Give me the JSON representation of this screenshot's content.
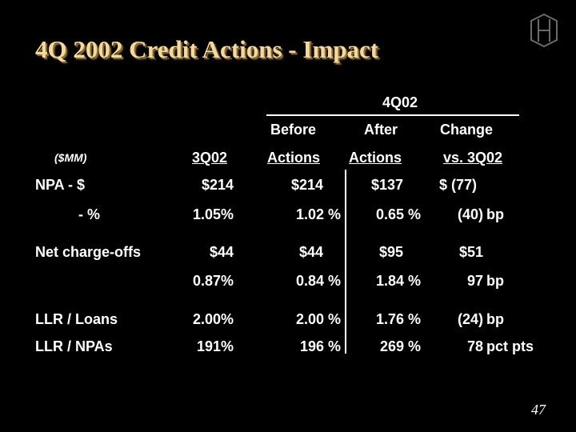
{
  "title": "4Q 2002 Credit Actions - Impact",
  "page_number": "47",
  "logo": "hsbc-style-monogram-icon",
  "header": {
    "period": "4Q02",
    "before_1": "Before",
    "before_2": "Actions",
    "after_1": "After",
    "after_2": "Actions",
    "change_1": "Change",
    "change_2": "vs. 3Q02",
    "units": "($MM)",
    "prev": "3Q02"
  },
  "rows": [
    {
      "label": "NPA - $",
      "q3": "$214",
      "before": "$214",
      "after": "$137",
      "chg": "$ (77)",
      "unit": ""
    },
    {
      "label": "- %",
      "q3": "1.05%",
      "before": "1.02 %",
      "after": "0.65 %",
      "chg": "(40)",
      "unit": "bp"
    },
    {
      "label": "Net charge-offs",
      "q3": "$44",
      "before": "$44",
      "after": "$95",
      "chg": "$51",
      "unit": ""
    },
    {
      "label": "",
      "q3": "0.87%",
      "before": "0.84 %",
      "after": "1.84 %",
      "chg": "97",
      "unit": "bp"
    },
    {
      "label": "LLR / Loans",
      "q3": "2.00%",
      "before": "2.00 %",
      "after": "1.76 %",
      "chg": "(24)",
      "unit": "bp"
    },
    {
      "label": "LLR / NPAs",
      "q3": "191%",
      "before": "196 %",
      "after": "269 %",
      "chg": "78",
      "unit": "pct pts"
    }
  ]
}
